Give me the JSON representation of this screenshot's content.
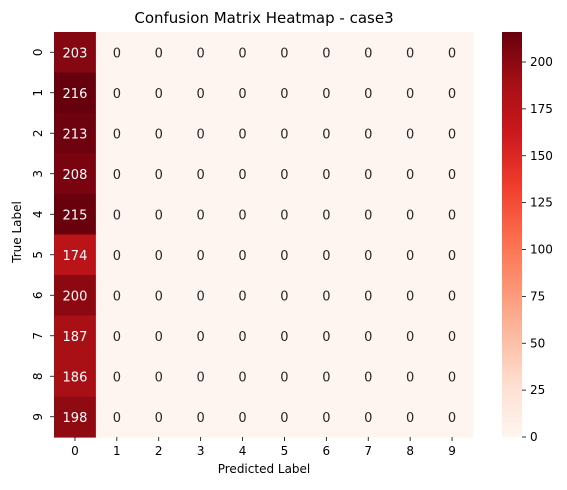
{
  "chart_data": {
    "type": "heatmap",
    "title": "Confusion Matrix Heatmap - case3",
    "xlabel": "Predicted Label",
    "ylabel": "True Label",
    "x_tick_labels": [
      "0",
      "1",
      "2",
      "3",
      "4",
      "5",
      "6",
      "7",
      "8",
      "9"
    ],
    "y_tick_labels": [
      "0",
      "1",
      "2",
      "3",
      "4",
      "5",
      "6",
      "7",
      "8",
      "9"
    ],
    "matrix": [
      [
        203,
        0,
        0,
        0,
        0,
        0,
        0,
        0,
        0,
        0
      ],
      [
        216,
        0,
        0,
        0,
        0,
        0,
        0,
        0,
        0,
        0
      ],
      [
        213,
        0,
        0,
        0,
        0,
        0,
        0,
        0,
        0,
        0
      ],
      [
        208,
        0,
        0,
        0,
        0,
        0,
        0,
        0,
        0,
        0
      ],
      [
        215,
        0,
        0,
        0,
        0,
        0,
        0,
        0,
        0,
        0
      ],
      [
        174,
        0,
        0,
        0,
        0,
        0,
        0,
        0,
        0,
        0
      ],
      [
        200,
        0,
        0,
        0,
        0,
        0,
        0,
        0,
        0,
        0
      ],
      [
        187,
        0,
        0,
        0,
        0,
        0,
        0,
        0,
        0,
        0
      ],
      [
        186,
        0,
        0,
        0,
        0,
        0,
        0,
        0,
        0,
        0
      ],
      [
        198,
        0,
        0,
        0,
        0,
        0,
        0,
        0,
        0,
        0
      ]
    ],
    "colorbar": {
      "colormap": "Reds",
      "vmin": 0,
      "vmax": 216,
      "ticks": [
        0,
        25,
        50,
        75,
        100,
        125,
        150,
        175,
        200
      ]
    }
  }
}
